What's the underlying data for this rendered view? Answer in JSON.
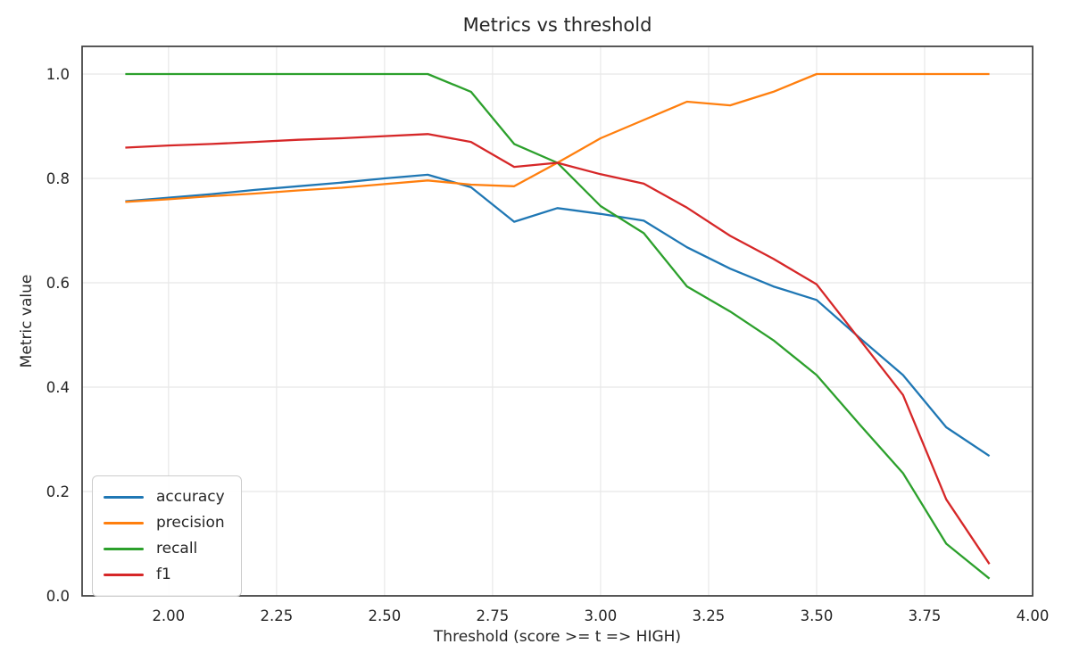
{
  "chart_data": {
    "type": "line",
    "title": "Metrics vs threshold",
    "xlabel": "Threshold (score >= t => HIGH)",
    "ylabel": "Metric value",
    "xlim": [
      1.8,
      4.0
    ],
    "ylim": [
      0,
      1.053
    ],
    "grid": true,
    "legend_position": "lower-left",
    "xticks": {
      "values": [
        2.0,
        2.25,
        2.5,
        2.75,
        3.0,
        3.25,
        3.5,
        3.75,
        4.0
      ],
      "labels": [
        "2.00",
        "2.25",
        "2.50",
        "2.75",
        "3.00",
        "3.25",
        "3.50",
        "3.75",
        "4.00"
      ]
    },
    "yticks": {
      "values": [
        0.0,
        0.2,
        0.4,
        0.6,
        0.8,
        1.0
      ],
      "labels": [
        "0.0",
        "0.2",
        "0.4",
        "0.6",
        "0.8",
        "1.0"
      ]
    },
    "x": [
      1.9,
      2.0,
      2.1,
      2.2,
      2.3,
      2.4,
      2.5,
      2.6,
      2.7,
      2.8,
      2.9,
      3.0,
      3.1,
      3.2,
      3.3,
      3.4,
      3.5,
      3.6,
      3.7,
      3.8,
      3.9
    ],
    "series": [
      {
        "name": "accuracy",
        "color": "#1f77b4",
        "values": [
          0.756,
          0.763,
          0.77,
          0.778,
          0.785,
          0.792,
          0.8,
          0.807,
          0.783,
          0.717,
          0.743,
          0.732,
          0.719,
          0.668,
          0.627,
          0.593,
          0.567,
          0.494,
          0.423,
          0.323,
          0.268
        ]
      },
      {
        "name": "precision",
        "color": "#ff7f0e",
        "values": [
          0.755,
          0.76,
          0.766,
          0.771,
          0.777,
          0.782,
          0.789,
          0.796,
          0.788,
          0.785,
          0.83,
          0.877,
          0.912,
          0.947,
          0.94,
          0.966,
          1.0,
          1.0,
          1.0,
          1.0,
          1.0
        ]
      },
      {
        "name": "recall",
        "color": "#2ca02c",
        "values": [
          1.0,
          1.0,
          1.0,
          1.0,
          1.0,
          1.0,
          1.0,
          1.0,
          0.966,
          0.866,
          0.83,
          0.747,
          0.695,
          0.593,
          0.545,
          0.49,
          0.423,
          0.328,
          0.235,
          0.1,
          0.033
        ]
      },
      {
        "name": "f1",
        "color": "#d62728",
        "values": [
          0.859,
          0.863,
          0.866,
          0.87,
          0.874,
          0.877,
          0.881,
          0.885,
          0.87,
          0.822,
          0.83,
          0.808,
          0.79,
          0.744,
          0.69,
          0.646,
          0.597,
          0.491,
          0.385,
          0.185,
          0.061
        ]
      }
    ],
    "styles": {
      "grid_color": "#e8e8e8",
      "spine_color": "#3b3b3b",
      "text_color": "#262626",
      "background": "#ffffff"
    }
  }
}
